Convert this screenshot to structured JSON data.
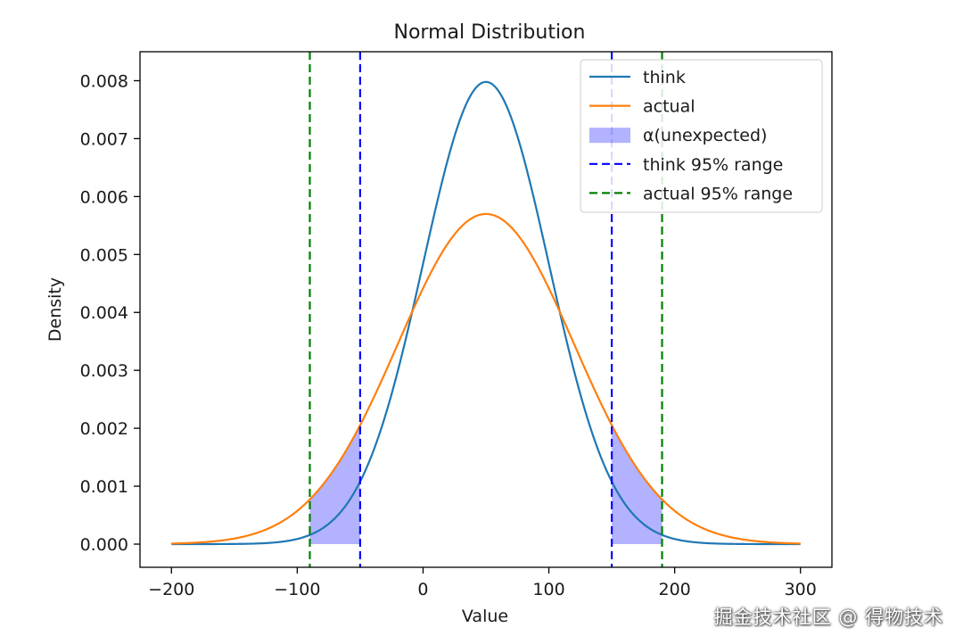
{
  "chart_data": {
    "type": "line",
    "title": "Normal Distribution",
    "xlabel": "Value",
    "ylabel": "Density",
    "xlim": [
      -225,
      325
    ],
    "ylim": [
      -0.0004,
      0.0085
    ],
    "xticks": [
      -200,
      -100,
      0,
      100,
      200,
      300
    ],
    "xtick_labels": [
      "−200",
      "−100",
      "0",
      "100",
      "200",
      "300"
    ],
    "yticks": [
      0.0,
      0.001,
      0.002,
      0.003,
      0.004,
      0.005,
      0.006,
      0.007,
      0.008
    ],
    "ytick_labels": [
      "0.000",
      "0.001",
      "0.002",
      "0.003",
      "0.004",
      "0.005",
      "0.006",
      "0.007",
      "0.008"
    ],
    "x_range": [
      -200,
      300
    ],
    "series": [
      {
        "name": "think",
        "mean": 50,
        "sd": 50,
        "color": "#1f77b4"
      },
      {
        "name": "actual",
        "mean": 50,
        "sd": 70,
        "color": "#ff7f0e"
      }
    ],
    "fill": {
      "name": "α(unexpected)",
      "color": "#0000ff",
      "opacity": 0.3,
      "regions": [
        [
          -90,
          -50
        ],
        [
          150,
          190
        ]
      ]
    },
    "vlines": [
      {
        "name": "think 95% range",
        "x": [
          -50,
          150
        ],
        "color": "#0000ff"
      },
      {
        "name": "actual 95% range",
        "x": [
          -90,
          190
        ],
        "color": "#008000"
      }
    ],
    "legend": {
      "position": "top-right",
      "entries": [
        "think",
        "actual",
        "α(unexpected)",
        "think 95% range",
        "actual 95% range"
      ]
    },
    "grid": false
  },
  "watermark": "掘金技术社区 @ 得物技术"
}
